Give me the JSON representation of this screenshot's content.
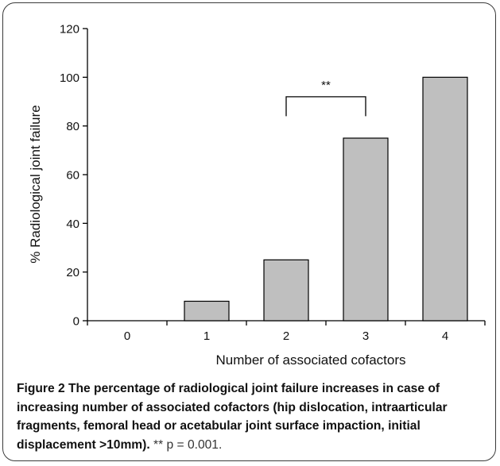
{
  "chart_data": {
    "type": "bar",
    "categories": [
      "0",
      "1",
      "2",
      "3",
      "4"
    ],
    "values": [
      0,
      8,
      25,
      75,
      100
    ],
    "xlabel": "Number of associated cofactors",
    "ylabel": "% Radiological joint failure",
    "ylim": [
      0,
      120
    ],
    "yticks": [
      "0",
      "20",
      "40",
      "60",
      "80",
      "100",
      "120"
    ],
    "grid": false,
    "legend": "none",
    "bar_color": "#bfbfbf",
    "bar_edge_color": "#000000",
    "annotation": {
      "text": "**",
      "from_category": "2",
      "to_category": "3",
      "level": 92,
      "drop_to": 84
    }
  },
  "caption": {
    "label": "Figure 2",
    "text": "The percentage of radiological joint failure increases in case of increasing number of associated cofactors (hip dislocation, intraarticular fragments, femoral head or acetabular joint surface impaction, initial displacement >10mm).",
    "note": "** p = 0.001."
  }
}
